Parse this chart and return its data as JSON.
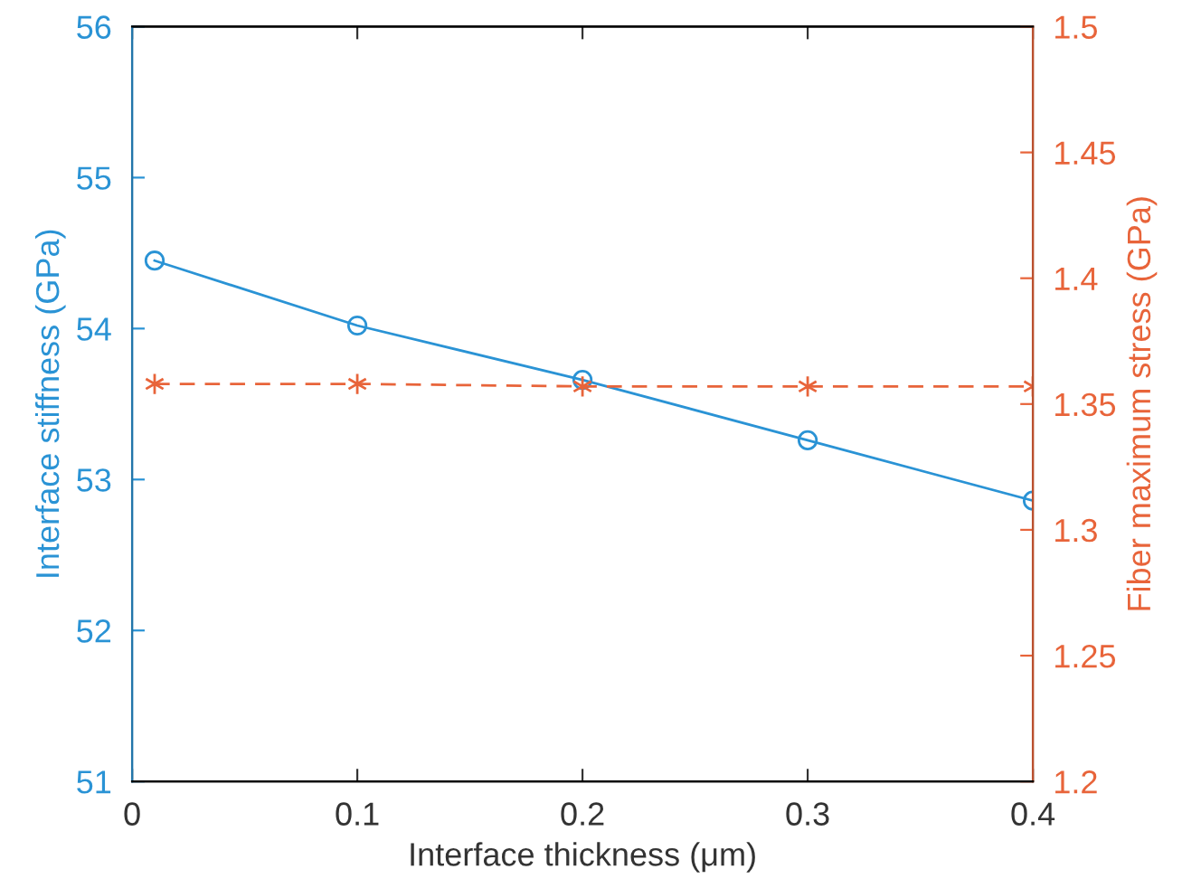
{
  "chart_data": {
    "type": "line",
    "xlabel": "Interface thickness (μm)",
    "ylabel": "Interface stiffness (GPa)",
    "y2label": "Fiber maximum stress (GPa)",
    "x": [
      0.01,
      0.1,
      0.2,
      0.3,
      0.4
    ],
    "series": [
      {
        "color": "#2a93d5",
        "values": [
          54.45,
          54.02,
          53.66,
          53.26,
          52.86
        ],
        "marker": "circle",
        "line_style": "solid"
      },
      {
        "color": "#e8643a",
        "values": [
          1.358,
          1.358,
          1.357,
          1.357,
          1.357
        ],
        "marker": "cross",
        "line_style": "dashed",
        "axis": "y2"
      }
    ],
    "xlim": [
      0,
      0.4
    ],
    "xticks": [
      0,
      0.1,
      0.2,
      0.3,
      0.4
    ],
    "ylim": [
      51,
      56
    ],
    "yticks": [
      51,
      52,
      53,
      54,
      55,
      56
    ],
    "y2lim": [
      1.2,
      1.5
    ],
    "y2ticks": [
      1.2,
      1.25,
      1.3,
      1.35,
      1.4,
      1.45,
      1.5
    ],
    "grid": false,
    "legend": false
  }
}
